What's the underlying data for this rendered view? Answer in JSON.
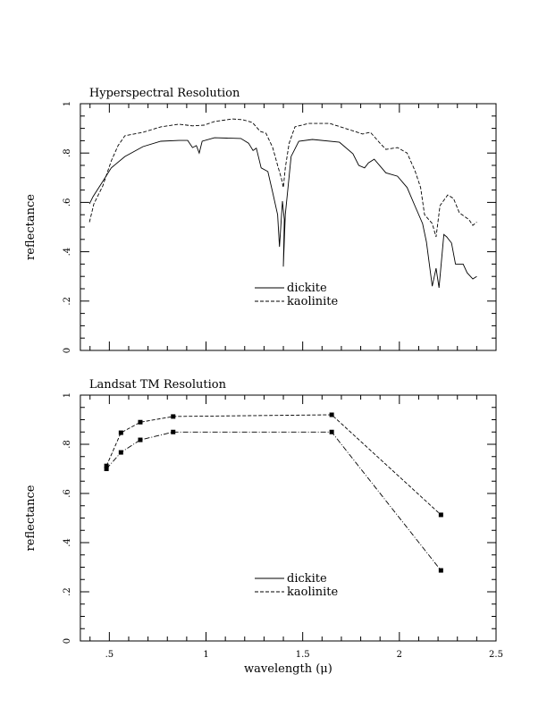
{
  "chart_data": [
    {
      "type": "line",
      "title": "Hyperspectral Resolution",
      "xlabel": "",
      "ylabel": "reflectance",
      "xlim": [
        0.35,
        2.5
      ],
      "ylim": [
        0,
        1
      ],
      "xticks": [
        0.5,
        1,
        1.5,
        2,
        2.5
      ],
      "xtick_labels": [
        ".5",
        "1",
        "1.5",
        "2",
        "2.5"
      ],
      "xticks_labeled": false,
      "yticks": [
        0,
        0.2,
        0.4,
        0.6,
        0.8,
        1
      ],
      "ytick_labels": [
        "0",
        ".2",
        ".4",
        ".6",
        ".8",
        "1"
      ],
      "legend": "center-bottom",
      "grid": false,
      "series": [
        {
          "name": "dickite",
          "style": "solid",
          "markers": false,
          "x": [
            0.397,
            0.415,
            0.466,
            0.51,
            0.58,
            0.674,
            0.766,
            0.86,
            0.905,
            0.93,
            0.95,
            0.965,
            0.98,
            1.044,
            1.18,
            1.22,
            1.243,
            1.26,
            1.285,
            1.32,
            1.345,
            1.37,
            1.38,
            1.395,
            1.405,
            1.4,
            1.41,
            1.44,
            1.48,
            1.55,
            1.69,
            1.76,
            1.79,
            1.82,
            1.84,
            1.87,
            1.93,
            1.99,
            2.04,
            2.08,
            2.12,
            2.14,
            2.17,
            2.19,
            2.205,
            2.23,
            2.245,
            2.27,
            2.29,
            2.33,
            2.35,
            2.38,
            2.4
          ],
          "y": [
            0.594,
            0.623,
            0.685,
            0.74,
            0.786,
            0.826,
            0.848,
            0.851,
            0.851,
            0.822,
            0.83,
            0.8,
            0.848,
            0.862,
            0.859,
            0.84,
            0.81,
            0.82,
            0.74,
            0.725,
            0.64,
            0.55,
            0.42,
            0.605,
            0.53,
            0.34,
            0.55,
            0.786,
            0.848,
            0.855,
            0.844,
            0.797,
            0.75,
            0.74,
            0.76,
            0.775,
            0.72,
            0.706,
            0.66,
            0.587,
            0.514,
            0.44,
            0.26,
            0.333,
            0.254,
            0.47,
            0.46,
            0.435,
            0.35,
            0.35,
            0.315,
            0.29,
            0.3
          ]
        },
        {
          "name": "kaolinite",
          "style": "dashed",
          "markers": false,
          "x": [
            0.397,
            0.42,
            0.466,
            0.51,
            0.545,
            0.58,
            0.674,
            0.766,
            0.86,
            0.93,
            0.99,
            1.044,
            1.136,
            1.19,
            1.24,
            1.28,
            1.31,
            1.345,
            1.37,
            1.39,
            1.4,
            1.41,
            1.43,
            1.46,
            1.53,
            1.64,
            1.74,
            1.81,
            1.85,
            1.9,
            1.93,
            1.99,
            2.04,
            2.08,
            2.11,
            2.13,
            2.17,
            2.19,
            2.21,
            2.25,
            2.28,
            2.31,
            2.36,
            2.38,
            2.4
          ],
          "y": [
            0.52,
            0.594,
            0.667,
            0.768,
            0.83,
            0.87,
            0.884,
            0.906,
            0.917,
            0.91,
            0.913,
            0.928,
            0.938,
            0.935,
            0.924,
            0.888,
            0.88,
            0.822,
            0.75,
            0.696,
            0.66,
            0.74,
            0.84,
            0.906,
            0.92,
            0.92,
            0.895,
            0.877,
            0.884,
            0.84,
            0.815,
            0.822,
            0.8,
            0.73,
            0.66,
            0.55,
            0.514,
            0.46,
            0.587,
            0.63,
            0.616,
            0.558,
            0.53,
            0.507,
            0.52
          ]
        }
      ]
    },
    {
      "type": "line",
      "title": "Landsat TM Resolution",
      "xlabel": "wavelength (μ)",
      "ylabel": "reflectance",
      "xlim": [
        0.35,
        2.5
      ],
      "ylim": [
        0,
        1
      ],
      "xticks": [
        0.5,
        1,
        1.5,
        2,
        2.5
      ],
      "xtick_labels": [
        ".5",
        "1",
        "1.5",
        "2",
        "2.5"
      ],
      "xticks_labeled": true,
      "yticks": [
        0,
        0.2,
        0.4,
        0.6,
        0.8,
        1
      ],
      "ytick_labels": [
        "0",
        ".2",
        ".4",
        ".6",
        ".8",
        "1"
      ],
      "legend": "center-bottom",
      "grid": false,
      "series": [
        {
          "name": "dickite",
          "style": "dashdot",
          "markers": true,
          "x": [
            0.485,
            0.56,
            0.66,
            0.83,
            1.65,
            2.215
          ],
          "y": [
            0.7,
            0.767,
            0.818,
            0.85,
            0.85,
            0.287
          ]
        },
        {
          "name": "kaolinite",
          "style": "dashed",
          "markers": true,
          "x": [
            0.485,
            0.56,
            0.66,
            0.83,
            1.65,
            2.215
          ],
          "y": [
            0.712,
            0.847,
            0.89,
            0.913,
            0.92,
            0.513
          ]
        }
      ]
    }
  ]
}
